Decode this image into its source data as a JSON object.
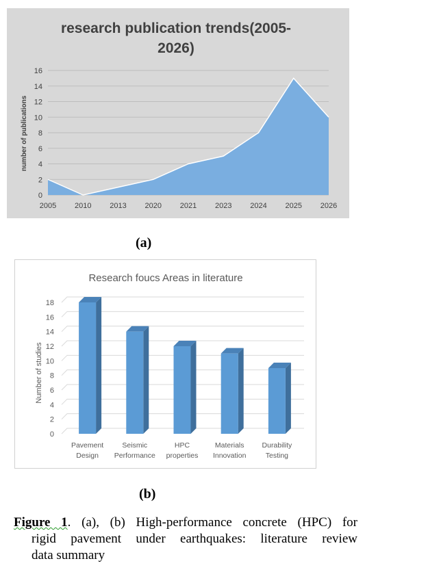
{
  "chart_data": [
    {
      "type": "area",
      "title": "research publication trends(2005-2026)",
      "title_lines": [
        "research publication trends(2005-",
        "2026)"
      ],
      "xlabel": "",
      "ylabel": "number of publications",
      "categories": [
        "2005",
        "2010",
        "2013",
        "2020",
        "2021",
        "2023",
        "2024",
        "2025",
        "2026"
      ],
      "values": [
        2,
        0,
        1,
        2,
        4,
        5,
        8,
        15,
        10
      ],
      "ylim": [
        0,
        16
      ],
      "yticks": [
        "0",
        "2",
        "4",
        "6",
        "8",
        "10",
        "12",
        "14",
        "16"
      ],
      "grid": true,
      "colors": {
        "fill": "#7aaee0",
        "line": "#ffffff",
        "background": "#d8d8d8",
        "grid": "#bdbdbd"
      }
    },
    {
      "type": "bar",
      "title": "Research foucs Areas in literature",
      "xlabel": "",
      "ylabel": "Number of studies",
      "categories": [
        [
          "Pavement",
          "Design"
        ],
        [
          "Seismic",
          "Performance"
        ],
        [
          "HPC",
          "properties"
        ],
        [
          "Materials",
          "Innovation"
        ],
        [
          "Durability",
          "Testing"
        ]
      ],
      "values": [
        18,
        14,
        12,
        11,
        9
      ],
      "ylim": [
        0,
        18
      ],
      "yticks": [
        "0",
        "2",
        "4",
        "6",
        "8",
        "10",
        "12",
        "14",
        "16",
        "18"
      ],
      "grid": true,
      "colors": {
        "front": "#5b9bd5",
        "side": "#3f6f9c",
        "top": "#4a82b8",
        "grid": "#d9d9d9"
      }
    }
  ],
  "labels": {
    "a": "(a)",
    "b": "(b)"
  },
  "caption": {
    "figure_word": "Figure 1",
    "line1": ". (a), (b) High-performance concrete (HPC) for",
    "line2": "rigid pavement under earthquakes: literature review",
    "line3": "data summary"
  }
}
